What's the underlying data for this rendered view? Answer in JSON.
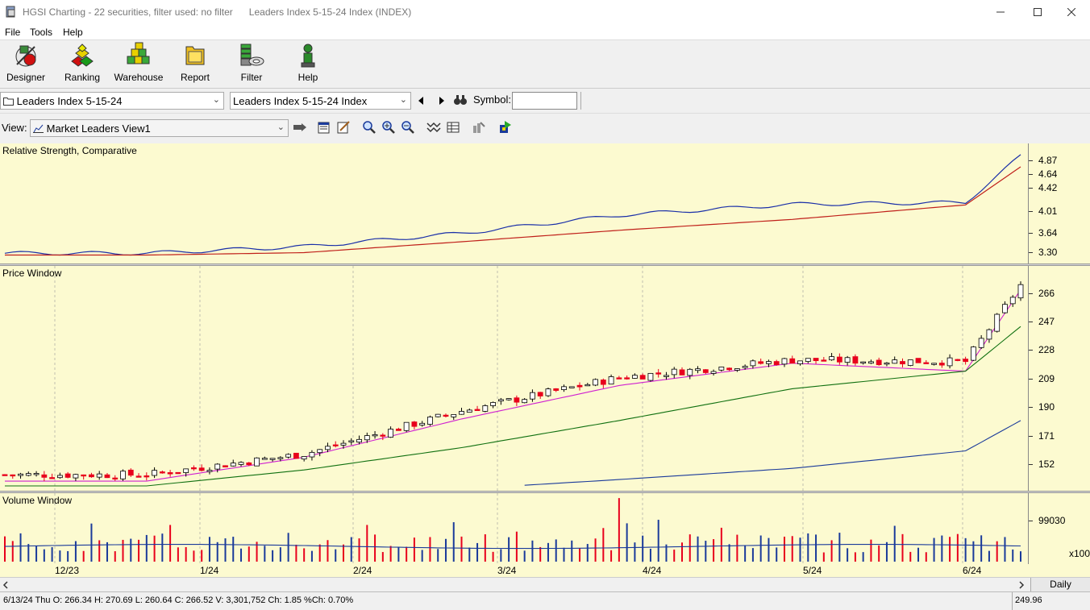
{
  "window": {
    "title": "HGSI Charting - 22 securities, filter used: no filter",
    "subtitle": "Leaders Index 5-15-24 Index (INDEX)"
  },
  "menu": [
    "File",
    "Tools",
    "Help"
  ],
  "toolbar": [
    {
      "label": "Designer",
      "icon": "designer-icon"
    },
    {
      "label": "Ranking",
      "icon": "ranking-icon"
    },
    {
      "label": "Warehouse",
      "icon": "warehouse-icon"
    },
    {
      "label": "Report",
      "icon": "report-icon"
    },
    {
      "label": "Filter",
      "icon": "filter-icon"
    },
    {
      "label": "Help",
      "icon": "help-icon"
    }
  ],
  "selectors": {
    "list_value": "Leaders Index 5-15-24",
    "security_value": "Leaders Index 5-15-24 Index",
    "symbol_label": "Symbol:",
    "symbol_value": ""
  },
  "view": {
    "label": "View:",
    "value": "Market Leaders View1"
  },
  "panes": {
    "rs_title": "Relative Strength, Comparative",
    "price_title": "Price Window",
    "volume_title": "Volume Window"
  },
  "axes": {
    "rs_ticks": [
      "4.87",
      "4.64",
      "4.42",
      "4.01",
      "3.64",
      "3.30"
    ],
    "price_ticks": [
      "266",
      "247",
      "228",
      "209",
      "190",
      "171",
      "152"
    ],
    "volume_ticks": [
      "99030"
    ],
    "volume_unit": "x100"
  },
  "dates": [
    "12/23",
    "1/24",
    "2/24",
    "3/24",
    "4/24",
    "5/24",
    "6/24"
  ],
  "periodicity": "Daily",
  "status": {
    "info": "6/13/24 Thu O: 266.34 H: 270.69 L: 260.64 C: 266.52 V: 3,301,752 Ch: 1.85 %Ch: 0.70%",
    "value": "249.96"
  },
  "colors": {
    "pane_bg": "#fcfad0",
    "up_candle": "#ffffff",
    "down_candle": "#e8001c",
    "rs_line": "#1a2fa8",
    "rs_ma": "#c0201a",
    "ma_fast": "#d020d0",
    "ma_mid": "#107010",
    "ma_slow": "#1a3a9a",
    "ma_long": "#c0201a"
  },
  "chart_data": {
    "type": "candlestick",
    "title": "Price Window",
    "last_bar": {
      "date": "6/13/24",
      "open": 266.34,
      "high": 270.69,
      "low": 260.64,
      "close": 266.52,
      "volume": 3301752,
      "change": 1.85,
      "pct_change": 0.7
    },
    "x": [
      "12/23",
      "1/24",
      "2/24",
      "3/24",
      "4/24",
      "5/24",
      "6/24"
    ],
    "price_series": [
      {
        "values": [
          147,
          160,
          187,
          208,
          219,
          218,
          266
        ]
      },
      {
        "values": [
          143,
          158,
          182,
          203,
          217,
          212,
          263
        ]
      },
      {
        "values": [
          140,
          150,
          164,
          181,
          201,
          212,
          240
        ]
      },
      {
        "values": [
          128,
          133,
          138,
          144,
          151,
          162,
          181
        ]
      }
    ],
    "ylim": [
      140,
      275
    ],
    "rs_line": {
      "values": [
        3.29,
        3.4,
        3.62,
        3.92,
        4.1,
        4.13,
        4.9
      ]
    },
    "rs_average": {
      "values": [
        3.26,
        3.3,
        3.48,
        3.67,
        3.85,
        4.09,
        4.72
      ]
    },
    "rs_ylim": [
      3.2,
      5.0
    ],
    "volume_ylim": [
      0,
      130000
    ]
  }
}
